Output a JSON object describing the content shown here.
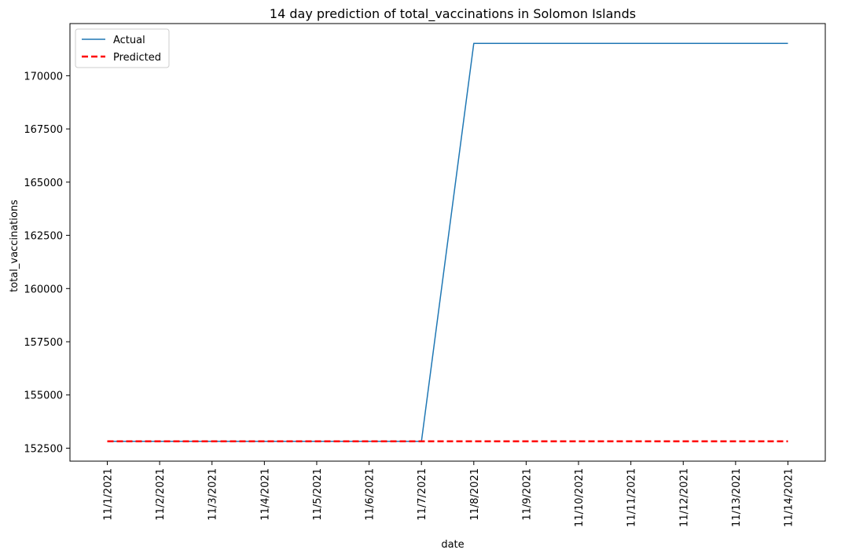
{
  "chart_data": {
    "type": "line",
    "title": "14 day prediction of total_vaccinations in Solomon Islands",
    "xlabel": "date",
    "ylabel": "total_vaccinations",
    "x": [
      "11/1/2021",
      "11/2/2021",
      "11/3/2021",
      "11/4/2021",
      "11/5/2021",
      "11/6/2021",
      "11/7/2021",
      "11/8/2021",
      "11/9/2021",
      "11/10/2021",
      "11/11/2021",
      "11/12/2021",
      "11/13/2021",
      "11/14/2021"
    ],
    "series": [
      {
        "name": "Actual",
        "color": "#1f77b4",
        "style": "solid",
        "values": [
          152820,
          152820,
          152820,
          152820,
          152820,
          152820,
          152820,
          171520,
          171520,
          171520,
          171520,
          171520,
          171520,
          171520
        ]
      },
      {
        "name": "Predicted",
        "color": "#ff0000",
        "style": "dashed",
        "values": [
          152820,
          152820,
          152820,
          152820,
          152820,
          152820,
          152820,
          152820,
          152820,
          152820,
          152820,
          152820,
          152820,
          152820
        ]
      }
    ],
    "yticks": [
      152500,
      155000,
      157500,
      160000,
      162500,
      165000,
      167500,
      170000
    ],
    "ylim": [
      151890,
      172450
    ],
    "grid": false,
    "legend_position": "top-left"
  }
}
